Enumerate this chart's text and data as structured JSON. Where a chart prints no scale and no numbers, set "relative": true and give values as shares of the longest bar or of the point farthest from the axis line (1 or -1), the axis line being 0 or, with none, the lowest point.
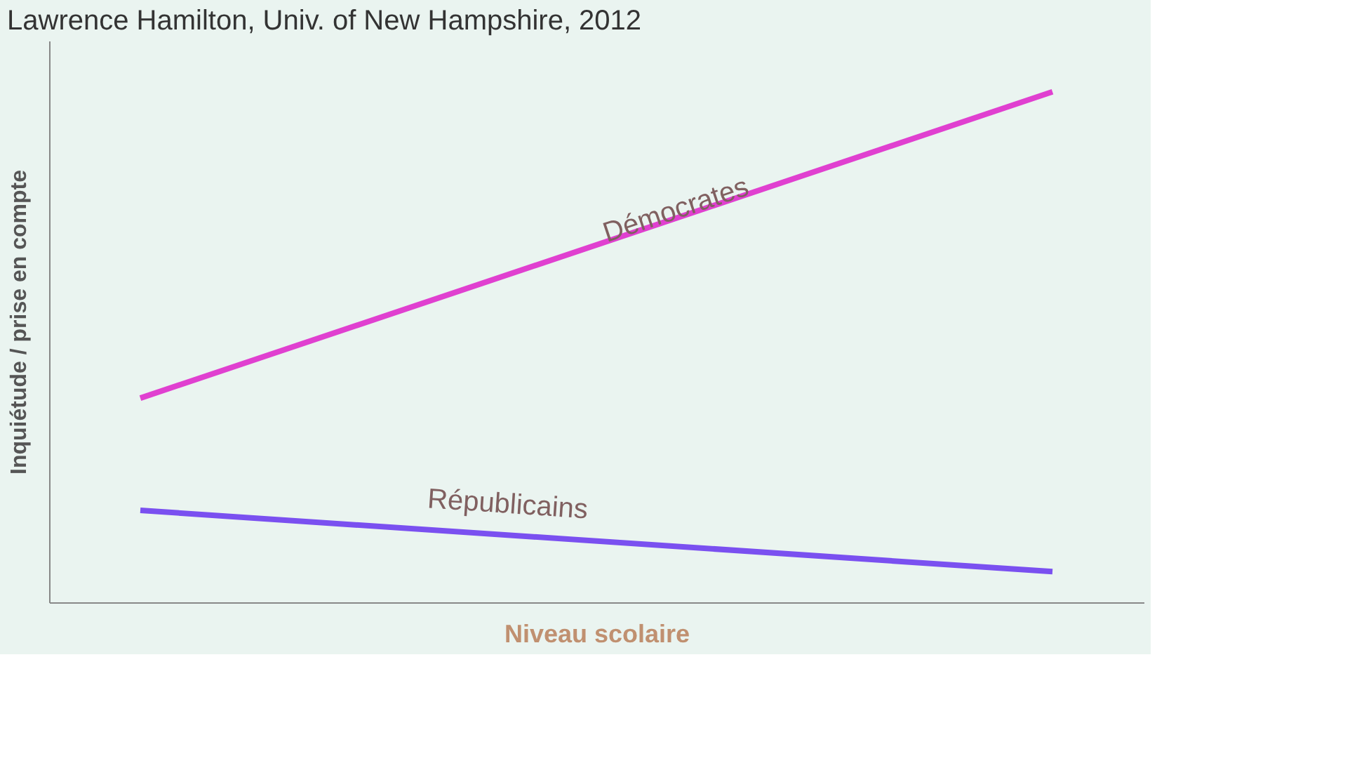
{
  "chart_data": {
    "type": "line",
    "title": "Lawrence Hamilton, Univ. of New Hampshire, 2012",
    "xlabel": "Niveau scolaire",
    "ylabel": "Inquiétude / prise en compte",
    "categories": [
      null,
      null
    ],
    "relative": true,
    "tick_labels": false,
    "grid": false,
    "legend": false,
    "marker": "none",
    "line_style": "solid",
    "series": [
      {
        "name": "Démocrates",
        "color": "#e040d0",
        "values": [
          0.4,
          1
        ]
      },
      {
        "name": "Républicains",
        "color": "#7a50f0",
        "values": [
          0.18,
          0.06
        ]
      }
    ]
  }
}
